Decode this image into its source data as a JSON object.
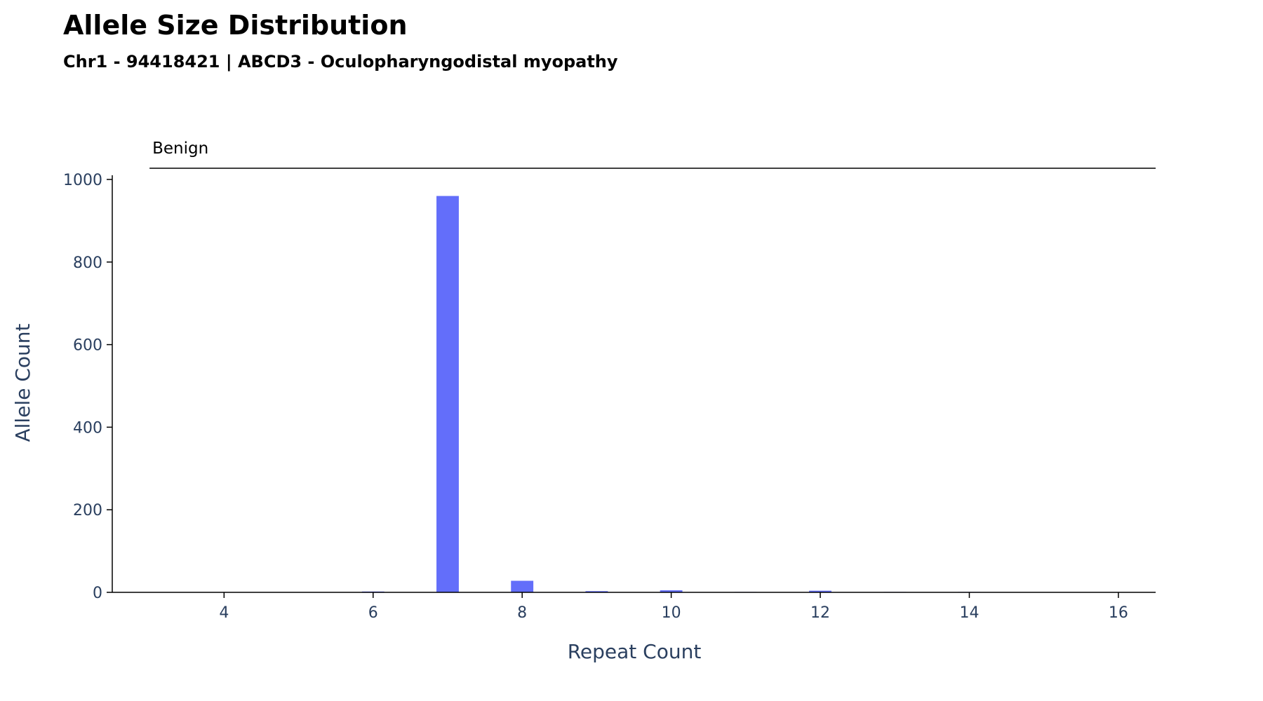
{
  "chart_data": {
    "type": "bar",
    "title": "Allele Size Distribution",
    "subtitle": "Chr1 - 94418421 | ABCD3 - Oculopharyngodistal myopathy",
    "xlabel": "Repeat Count",
    "ylabel": "Allele Count",
    "xlim": [
      2.5,
      16.5
    ],
    "ylim": [
      0,
      1000
    ],
    "xticks": [
      4,
      6,
      8,
      10,
      12,
      14,
      16
    ],
    "yticks": [
      0,
      200,
      400,
      600,
      800,
      1000
    ],
    "bar_color": "#636efa",
    "x": [
      6,
      7,
      8,
      9,
      10,
      11,
      12,
      13,
      14
    ],
    "values": [
      2,
      960,
      28,
      3,
      5,
      1,
      4,
      1,
      1
    ],
    "grid": false,
    "range_bands": [
      {
        "label": "Benign",
        "from": 3,
        "to": 16.5
      }
    ]
  }
}
